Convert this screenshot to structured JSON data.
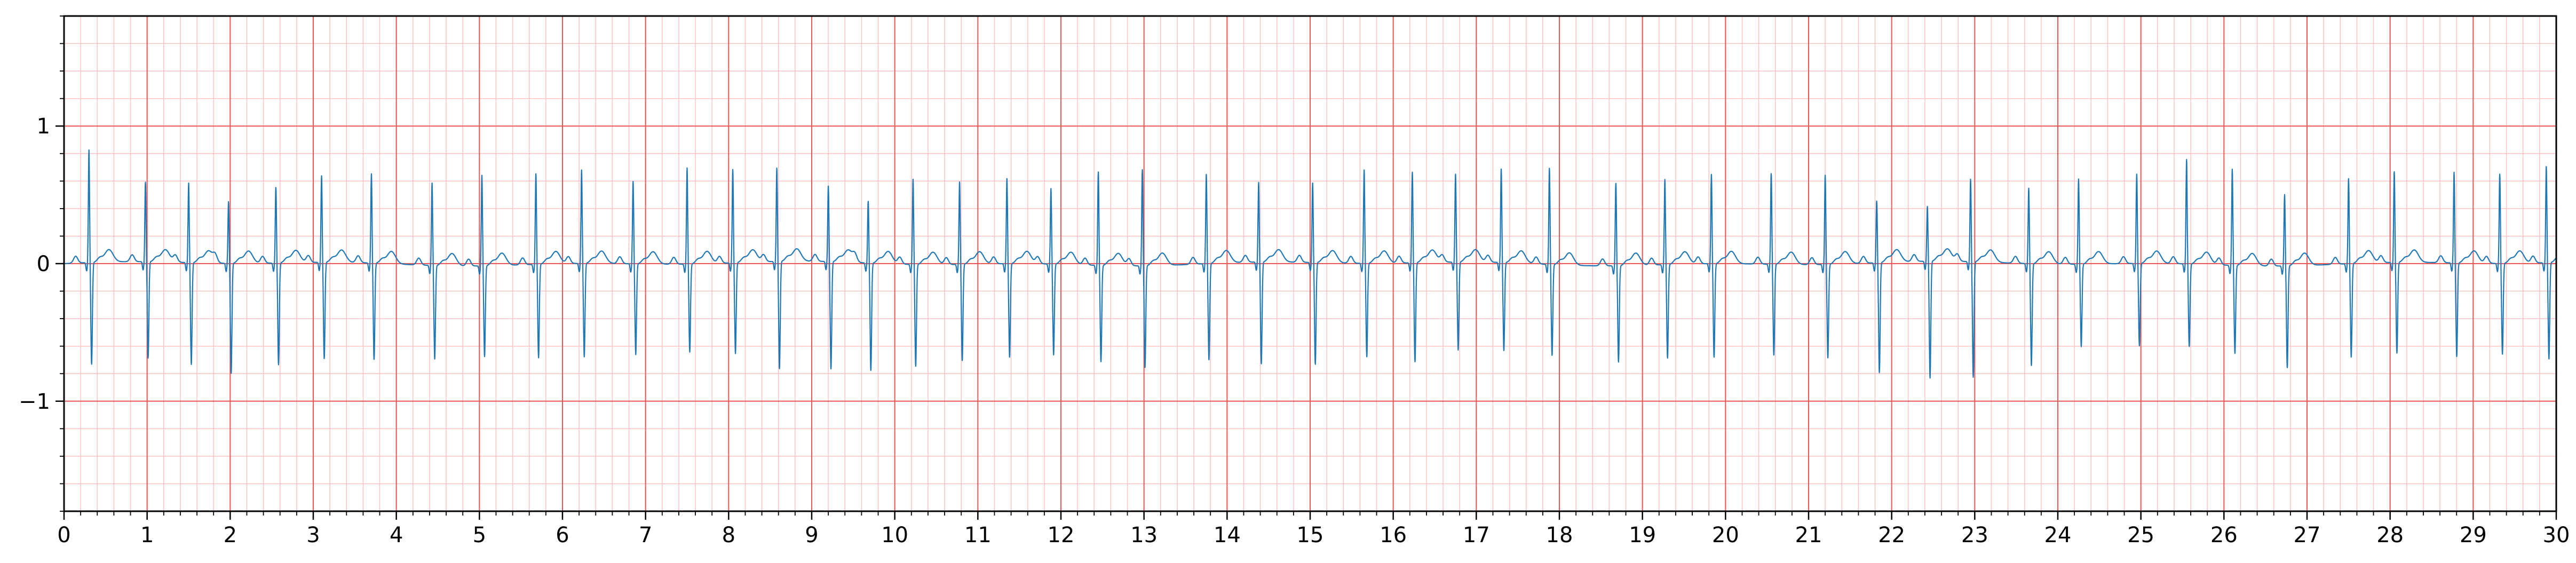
{
  "chart_data": {
    "type": "line",
    "title": "",
    "xlabel": "",
    "ylabel": "",
    "xlim": [
      0,
      30
    ],
    "ylim": [
      -1.8,
      1.8
    ],
    "grid": true,
    "grid_style": "ecg-paper",
    "x_major_step": 1,
    "x_minor_step": 0.2,
    "y_major_step": 1,
    "y_minor_step": 0.2,
    "x_tick_labels": [
      "0",
      "1",
      "2",
      "3",
      "4",
      "5",
      "6",
      "7",
      "8",
      "9",
      "10",
      "11",
      "12",
      "13",
      "14",
      "15",
      "16",
      "17",
      "18",
      "19",
      "20",
      "21",
      "22",
      "23",
      "24",
      "25",
      "26",
      "27",
      "28",
      "29",
      "30"
    ],
    "y_tick_labels": [
      "1",
      "0",
      "−1"
    ],
    "y_tick_values": [
      1,
      0,
      -1
    ],
    "colors": {
      "trace": "#1f77b4",
      "grid_major": "#ee5555",
      "grid_minor": "#ffc2c2",
      "axes": "#000000"
    },
    "series": [
      {
        "beat_times": [
          0.3,
          0.98,
          1.5,
          1.98,
          2.55,
          3.1,
          3.7,
          4.43,
          5.03,
          5.68,
          6.23,
          6.85,
          7.5,
          8.05,
          8.58,
          9.2,
          9.68,
          10.22,
          10.78,
          11.35,
          11.88,
          12.45,
          12.98,
          13.75,
          14.38,
          15.03,
          15.65,
          16.23,
          16.75,
          17.3,
          17.88,
          18.68,
          19.27,
          19.83,
          20.55,
          21.2,
          21.82,
          22.43,
          22.95,
          23.65,
          24.25,
          24.95,
          25.55,
          26.1,
          26.73,
          27.5,
          28.05,
          28.77,
          29.32,
          29.88
        ],
        "r_peaks": [
          0.82,
          0.58,
          0.58,
          0.45,
          0.55,
          0.63,
          0.65,
          0.6,
          0.66,
          0.66,
          0.68,
          0.6,
          0.7,
          0.68,
          0.68,
          0.55,
          0.45,
          0.62,
          0.6,
          0.62,
          0.55,
          0.68,
          0.7,
          0.65,
          0.58,
          0.58,
          0.68,
          0.66,
          0.64,
          0.68,
          0.7,
          0.6,
          0.62,
          0.65,
          0.66,
          0.65,
          0.45,
          0.4,
          0.6,
          0.55,
          0.62,
          0.65,
          0.76,
          0.7,
          0.52,
          0.62,
          0.66,
          0.66,
          0.65,
          0.7
        ],
        "s_troughs": [
          -0.74,
          -0.7,
          -0.74,
          -0.8,
          -0.74,
          -0.7,
          -0.7,
          -0.68,
          -0.66,
          -0.68,
          -0.68,
          -0.66,
          -0.64,
          -0.66,
          -0.78,
          -0.78,
          -0.78,
          -0.74,
          -0.7,
          -0.68,
          -0.66,
          -0.7,
          -0.74,
          -0.7,
          -0.74,
          -0.74,
          -0.68,
          -0.72,
          -0.64,
          -0.64,
          -0.66,
          -0.7,
          -0.68,
          -0.68,
          -0.66,
          -0.68,
          -0.8,
          -0.85,
          -0.84,
          -0.74,
          -0.6,
          -0.6,
          -0.6,
          -0.64,
          -0.74,
          -0.68,
          -0.66,
          -0.68,
          -0.66,
          -0.7
        ]
      }
    ]
  }
}
